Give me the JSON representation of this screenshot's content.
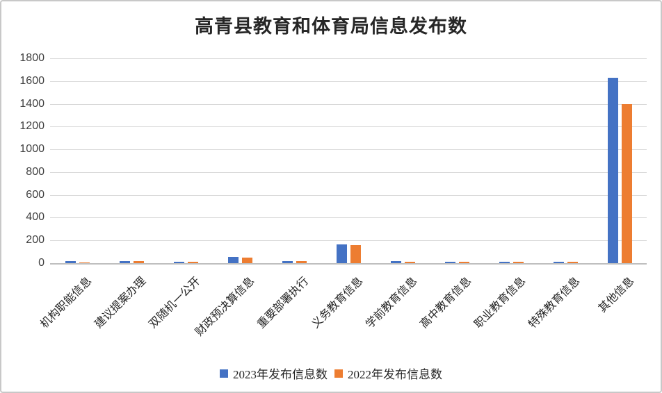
{
  "chart_data": {
    "type": "bar",
    "title": "高青县教育和体育局信息发布数",
    "categories": [
      "机构职能信息",
      "建议提案办理",
      "双随机一公开",
      "财政预决算信息",
      "重要部署执行",
      "义务教育信息",
      "学前教育信息",
      "高中教育信息",
      "职业教育信息",
      "特殊教育信息",
      "其他信息"
    ],
    "series": [
      {
        "name": "2023年发布信息数",
        "color": "#4472C4",
        "values": [
          18,
          20,
          12,
          55,
          20,
          162,
          20,
          12,
          14,
          14,
          1630
        ]
      },
      {
        "name": "2022年发布信息数",
        "color": "#ED7D31",
        "values": [
          9,
          18,
          10,
          50,
          18,
          160,
          10,
          10,
          12,
          12,
          1400
        ]
      }
    ],
    "xlabel": "",
    "ylabel": "",
    "ylim": [
      0,
      1800
    ],
    "ytick_interval": 200,
    "grid": "horizontal",
    "legend_position": "bottom"
  },
  "colors": {
    "series_2023": "#4472C4",
    "series_2022": "#ED7D31",
    "gridline": "#D9D9D9",
    "axis_line": "#BFBFBF",
    "axis_text": "#404040",
    "category_text": "#262626",
    "background": "#FFFFFF",
    "frame_border": "#C8C8C8"
  }
}
